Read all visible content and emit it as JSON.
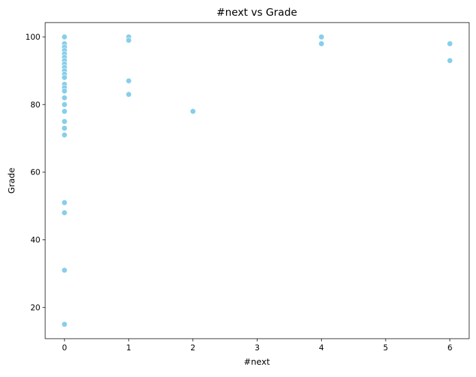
{
  "chart_data": {
    "type": "scatter",
    "title": "#next vs Grade",
    "xlabel": "#next",
    "ylabel": "Grade",
    "xlim": [
      -0.3,
      6.3
    ],
    "ylim": [
      10.75,
      104.25
    ],
    "xticks": [
      "0",
      "1",
      "2",
      "3",
      "4",
      "5",
      "6"
    ],
    "yticks": [
      "20",
      "40",
      "60",
      "80",
      "100"
    ],
    "grid": false,
    "marker_color": "#87ceeb",
    "points": [
      {
        "x": 0,
        "y": 100
      },
      {
        "x": 0,
        "y": 98
      },
      {
        "x": 0,
        "y": 97
      },
      {
        "x": 0,
        "y": 96
      },
      {
        "x": 0,
        "y": 95
      },
      {
        "x": 0,
        "y": 94
      },
      {
        "x": 0,
        "y": 93
      },
      {
        "x": 0,
        "y": 92
      },
      {
        "x": 0,
        "y": 91
      },
      {
        "x": 0,
        "y": 90
      },
      {
        "x": 0,
        "y": 89
      },
      {
        "x": 0,
        "y": 88
      },
      {
        "x": 0,
        "y": 86
      },
      {
        "x": 0,
        "y": 85
      },
      {
        "x": 0,
        "y": 84
      },
      {
        "x": 0,
        "y": 82
      },
      {
        "x": 0,
        "y": 80
      },
      {
        "x": 0,
        "y": 78
      },
      {
        "x": 0,
        "y": 75
      },
      {
        "x": 0,
        "y": 73
      },
      {
        "x": 0,
        "y": 71
      },
      {
        "x": 0,
        "y": 51
      },
      {
        "x": 0,
        "y": 48
      },
      {
        "x": 0,
        "y": 31
      },
      {
        "x": 0,
        "y": 15
      },
      {
        "x": 1,
        "y": 100
      },
      {
        "x": 1,
        "y": 99
      },
      {
        "x": 1,
        "y": 87
      },
      {
        "x": 1,
        "y": 83
      },
      {
        "x": 2,
        "y": 78
      },
      {
        "x": 4,
        "y": 100
      },
      {
        "x": 4,
        "y": 98
      },
      {
        "x": 6,
        "y": 98
      },
      {
        "x": 6,
        "y": 93
      }
    ]
  }
}
